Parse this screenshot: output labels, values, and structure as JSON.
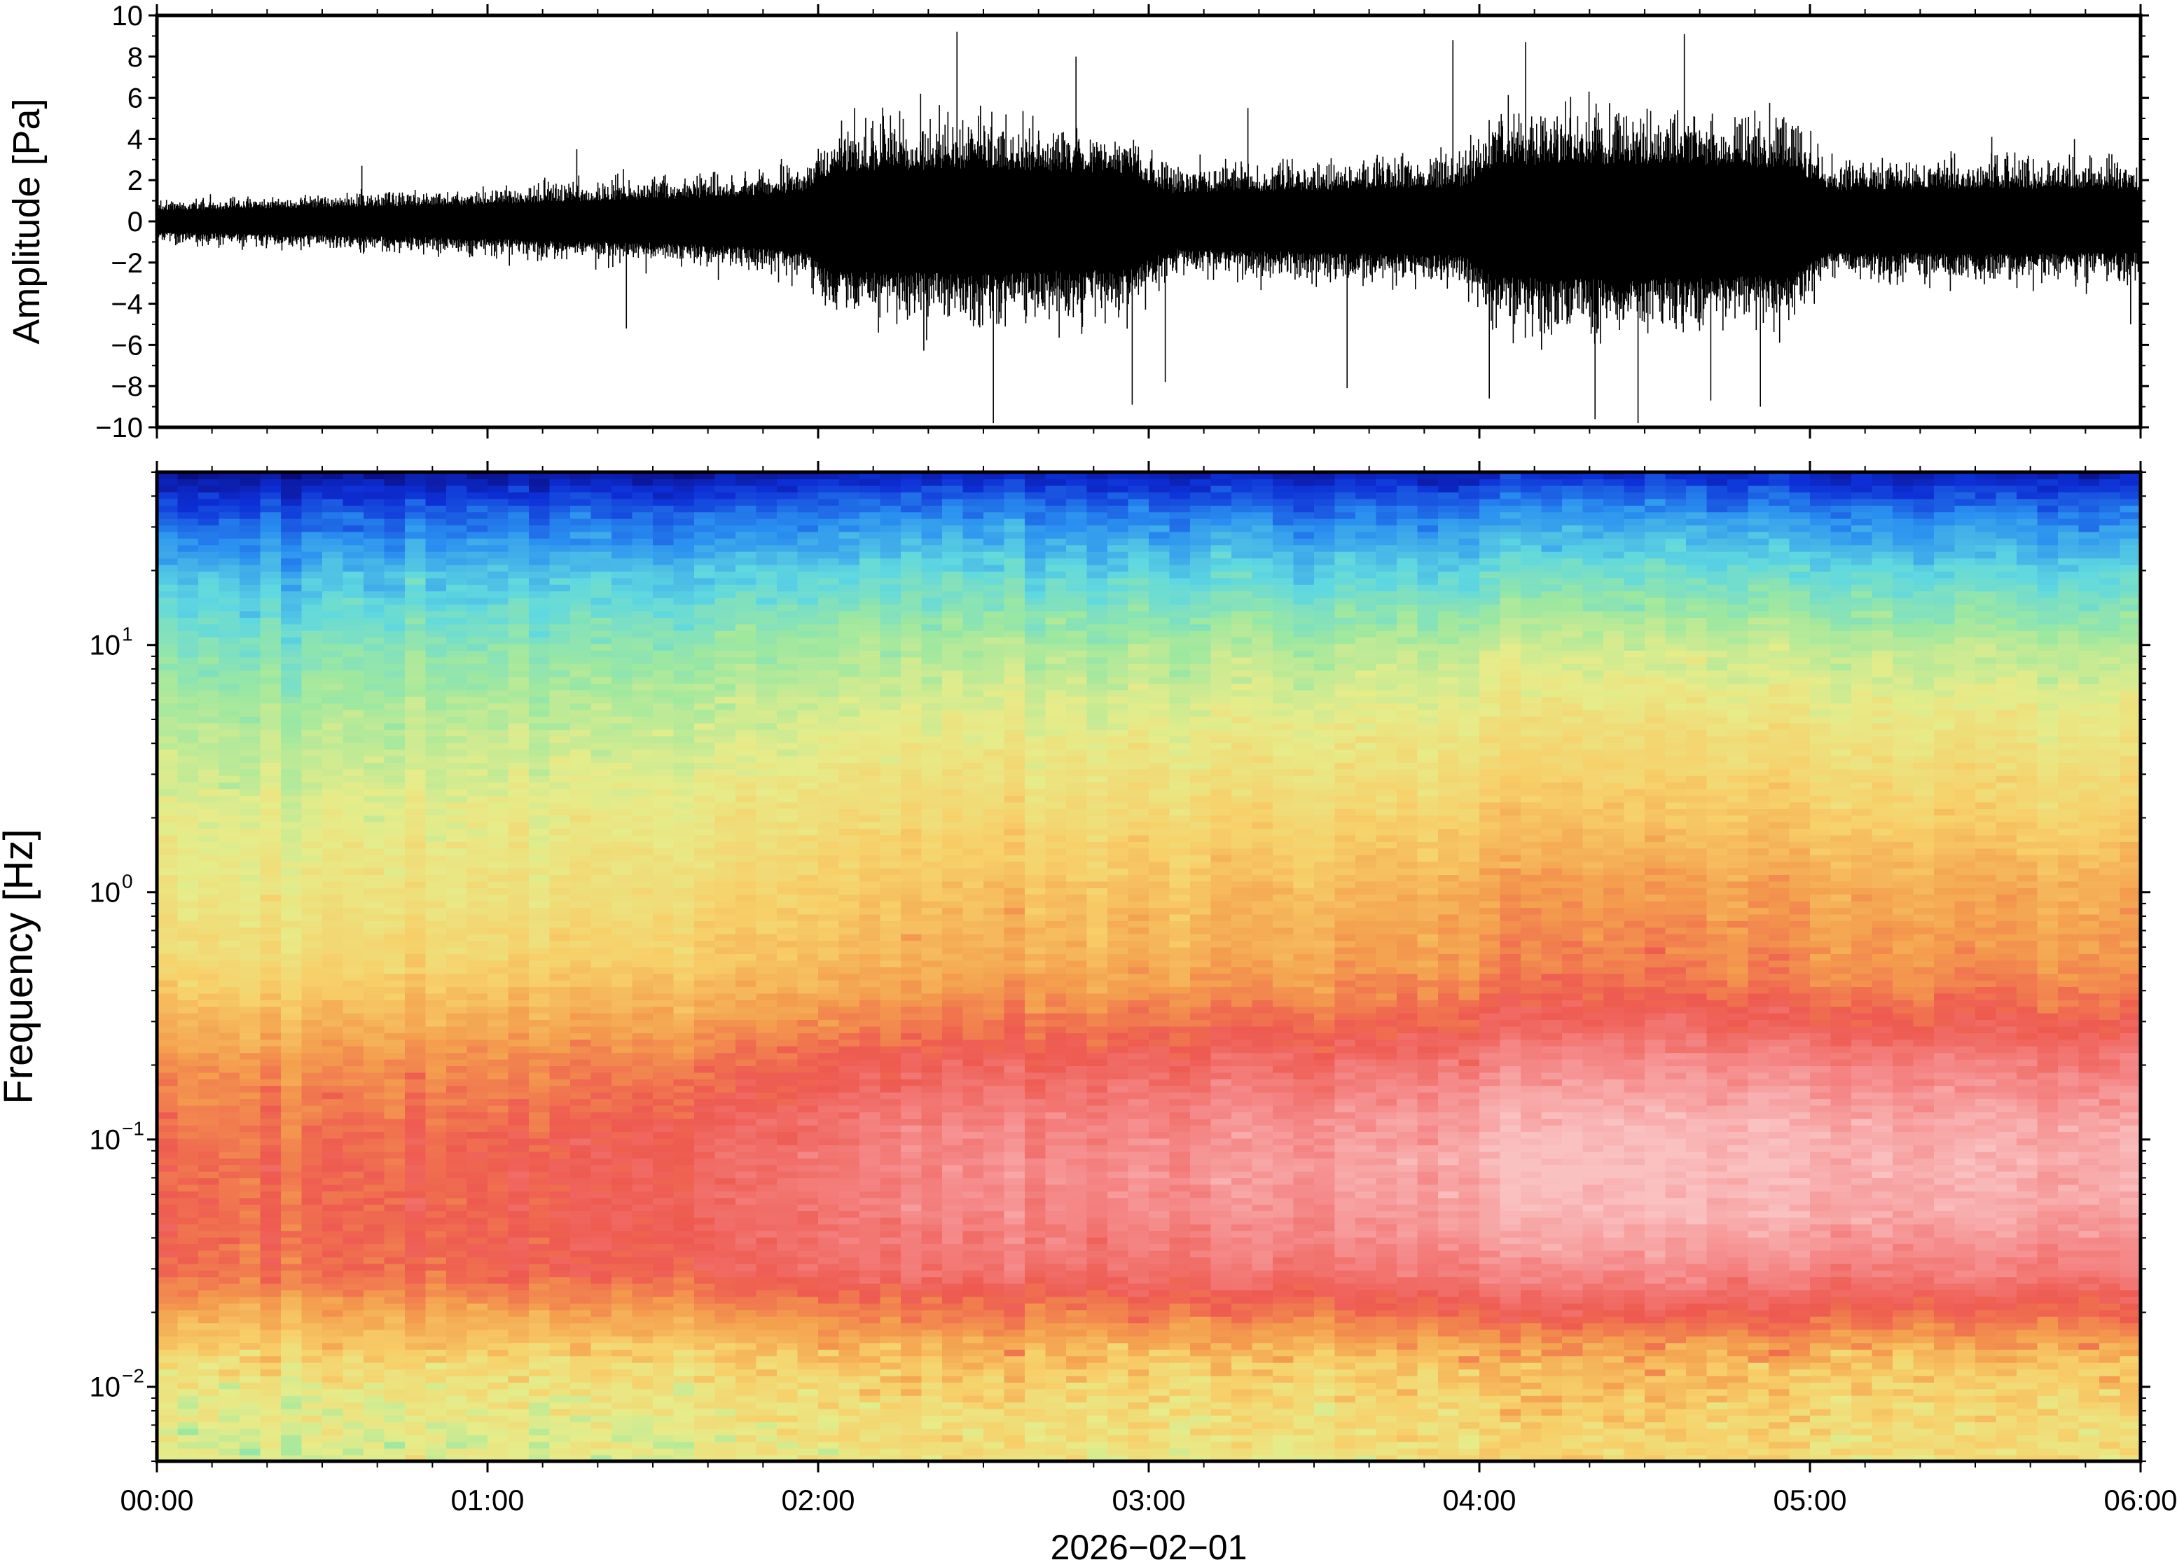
{
  "chart_data": [
    {
      "type": "line",
      "panel": "waveform",
      "ylabel": "Amplitude [Pa]",
      "ylim": [
        -10,
        10
      ],
      "yticks": [
        -10,
        -8,
        -6,
        -4,
        -2,
        0,
        2,
        4,
        6,
        8,
        10
      ],
      "ytick_labels": [
        "−10",
        "−8",
        "−6",
        "−4",
        "−2",
        "0",
        "2",
        "4",
        "6",
        "8",
        "10"
      ],
      "xlim_hours": [
        0,
        6
      ],
      "envelope_hours": [
        0,
        0.25,
        0.5,
        0.75,
        1.0,
        1.25,
        1.5,
        1.75,
        1.95,
        2.05,
        2.25,
        2.5,
        2.75,
        2.95,
        3.05,
        3.25,
        3.5,
        3.75,
        3.95,
        4.05,
        4.25,
        4.5,
        4.75,
        4.95,
        5.05,
        5.25,
        5.5,
        5.75,
        6.0
      ],
      "envelope_amplitude": [
        0.7,
        0.8,
        0.9,
        1.0,
        1.1,
        1.3,
        1.4,
        1.6,
        1.9,
        3.2,
        3.3,
        3.4,
        3.2,
        3.1,
        1.8,
        1.9,
        2.0,
        2.1,
        2.2,
        3.6,
        3.7,
        3.7,
        3.6,
        3.4,
        2.0,
        2.0,
        2.1,
        2.1,
        2.0
      ],
      "peak_spikes": [
        {
          "t": 0.23,
          "a": 1.2
        },
        {
          "t": 0.62,
          "a": 2.7
        },
        {
          "t": 1.27,
          "a": 3.5
        },
        {
          "t": 1.42,
          "a": -5.2
        },
        {
          "t": 2.11,
          "a": 5.5
        },
        {
          "t": 2.31,
          "a": 6.2
        },
        {
          "t": 2.42,
          "a": 9.2
        },
        {
          "t": 2.53,
          "a": -9.8
        },
        {
          "t": 2.78,
          "a": 8.0
        },
        {
          "t": 2.95,
          "a": -8.9
        },
        {
          "t": 3.05,
          "a": -7.8
        },
        {
          "t": 3.3,
          "a": 5.5
        },
        {
          "t": 3.6,
          "a": -8.1
        },
        {
          "t": 3.92,
          "a": 8.8
        },
        {
          "t": 4.03,
          "a": -8.6
        },
        {
          "t": 4.14,
          "a": 8.7
        },
        {
          "t": 4.35,
          "a": -9.6
        },
        {
          "t": 4.48,
          "a": -9.8
        },
        {
          "t": 4.62,
          "a": 9.1
        },
        {
          "t": 4.7,
          "a": -8.7
        },
        {
          "t": 4.85,
          "a": -9.0
        },
        {
          "t": 5.55,
          "a": 4.1
        },
        {
          "t": 5.8,
          "a": 4.0
        },
        {
          "t": 5.97,
          "a": -5.0
        }
      ]
    },
    {
      "type": "heatmap",
      "panel": "spectrogram",
      "ylabel": "Frequency [Hz]",
      "yscale": "log",
      "ylim": [
        0.005,
        50
      ],
      "yticks": [
        0.01,
        0.1,
        1,
        10
      ],
      "ytick_labels": [
        {
          "base": "10",
          "exp": "−2"
        },
        {
          "base": "10",
          "exp": "−1"
        },
        {
          "base": "10",
          "exp": "0"
        },
        {
          "base": "10",
          "exp": "1"
        }
      ],
      "xlim_hours": [
        0,
        6
      ],
      "colormap": "rainbow (dark blue = low power, red = high power, pale pink = highest)",
      "colormap_stops": [
        "#0a0a7a",
        "#0d2fd6",
        "#2a8ff0",
        "#5fd8e0",
        "#9ee8a0",
        "#e6ec8a",
        "#f7d06a",
        "#f4a04e",
        "#ee5a50",
        "#f58a8a",
        "#fac2c2"
      ],
      "power_profile_frequency_hz": [
        0.005,
        0.008,
        0.012,
        0.02,
        0.03,
        0.05,
        0.08,
        0.12,
        0.2,
        0.3,
        0.5,
        1,
        2,
        5,
        10,
        20,
        35,
        50
      ],
      "power_profile_level_early": [
        0.5,
        0.52,
        0.58,
        0.7,
        0.8,
        0.8,
        0.8,
        0.78,
        0.74,
        0.68,
        0.6,
        0.55,
        0.52,
        0.45,
        0.38,
        0.28,
        0.16,
        0.05
      ],
      "power_profile_level_late": [
        0.55,
        0.58,
        0.62,
        0.78,
        0.88,
        0.95,
        0.97,
        0.95,
        0.88,
        0.8,
        0.72,
        0.68,
        0.6,
        0.52,
        0.44,
        0.3,
        0.18,
        0.06
      ]
    }
  ],
  "xaxis": {
    "tick_hours": [
      0,
      1,
      2,
      3,
      4,
      5,
      6
    ],
    "tick_labels": [
      "00:00",
      "01:00",
      "02:00",
      "03:00",
      "04:00",
      "05:00",
      "06:00"
    ],
    "minor_step_minutes": 10,
    "date_label": "2026−02−01"
  }
}
